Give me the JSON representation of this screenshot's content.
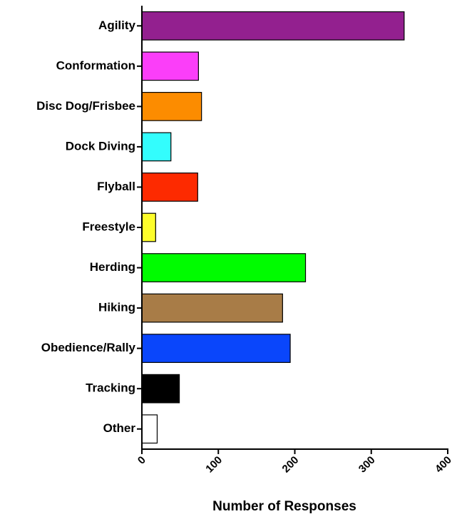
{
  "chart_data": {
    "type": "bar",
    "orientation": "horizontal",
    "x_label": "Number of Responses",
    "categories": [
      "Agility",
      "Conformation",
      "Disc Dog/Frisbee",
      "Dock Diving",
      "Flyball",
      "Freestyle",
      "Herding",
      "Hiking",
      "Obedience/Rally",
      "Tracking",
      "Other"
    ],
    "values": [
      343,
      74,
      78,
      38,
      73,
      18,
      214,
      184,
      194,
      49,
      20
    ],
    "colors": [
      "#93208f",
      "#fb3ef9",
      "#fc8c00",
      "#33fdfd",
      "#fd2a00",
      "#fdfd2b",
      "#00fc00",
      "#a87c47",
      "#0a46fb",
      "#000000",
      "#ffffff"
    ],
    "xlim": [
      0,
      400
    ],
    "xticks": [
      0,
      100,
      200,
      300,
      400
    ],
    "grid": false
  }
}
